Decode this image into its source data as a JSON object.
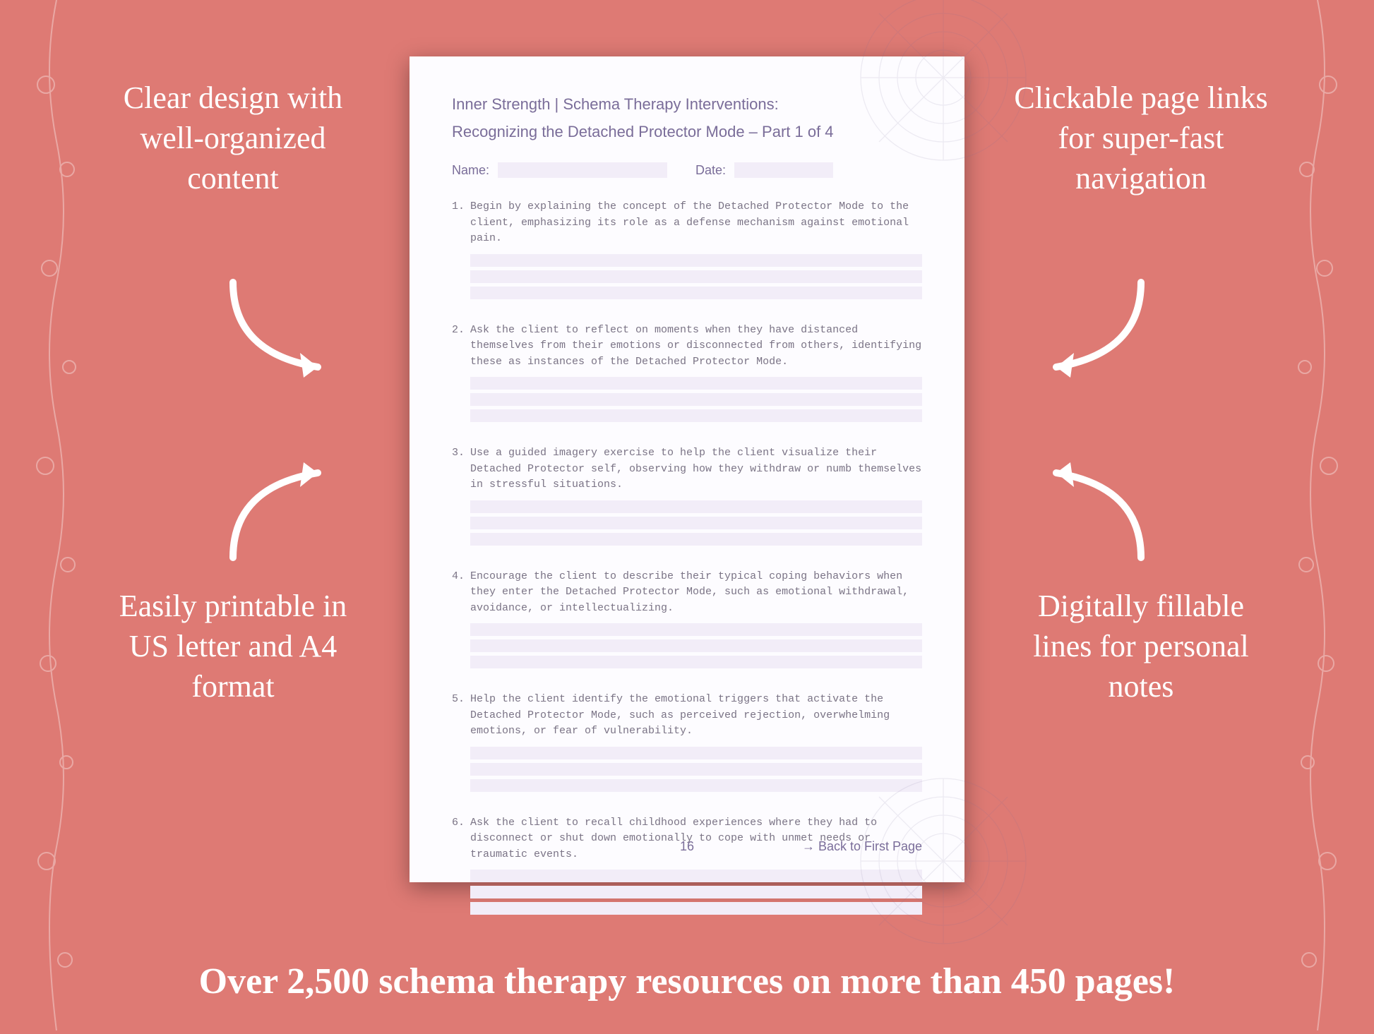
{
  "colors": {
    "background": "#de7a74",
    "callout_text": "#ffffff",
    "arrow_stroke": "#ffffff",
    "page_bg": "#fdfcff",
    "page_text": "#7a6d99",
    "item_text": "#7a7385",
    "fill_line": "#f2edf8",
    "shadow": "rgba(0,0,0,0.35)"
  },
  "callouts": {
    "top_left": "Clear design with well-organized content",
    "top_right": "Clickable page links for super-fast navigation",
    "bottom_left": "Easily printable in US letter and A4 format",
    "bottom_right": "Digitally fillable lines for personal notes"
  },
  "banner": "Over 2,500 schema therapy resources on more than 450 pages!",
  "page": {
    "header_line1": "Inner Strength | Schema Therapy Interventions:",
    "header_line2": "Recognizing the Detached Protector Mode  – Part 1 of 4",
    "name_label": "Name:",
    "date_label": "Date:",
    "items": [
      "Begin by explaining the concept of the Detached Protector Mode to the client, emphasizing its role as a defense mechanism against emotional pain.",
      "Ask the client to reflect on moments when they have distanced themselves from their emotions or disconnected from others, identifying these as instances of the Detached Protector Mode.",
      "Use a guided imagery exercise to help the client visualize their Detached Protector self, observing how they withdraw or numb themselves in stressful situations.",
      "Encourage the client to describe their typical coping behaviors when they enter the Detached Protector Mode, such as emotional withdrawal, avoidance, or intellectualizing.",
      "Help the client identify the emotional triggers that activate the Detached Protector Mode, such as perceived rejection, overwhelming emotions, or fear of vulnerability.",
      "Ask the client to recall childhood experiences where they had to disconnect or shut down emotionally to cope with unmet needs or traumatic events."
    ],
    "page_number": "16",
    "back_link": "→ Back to First Page"
  }
}
